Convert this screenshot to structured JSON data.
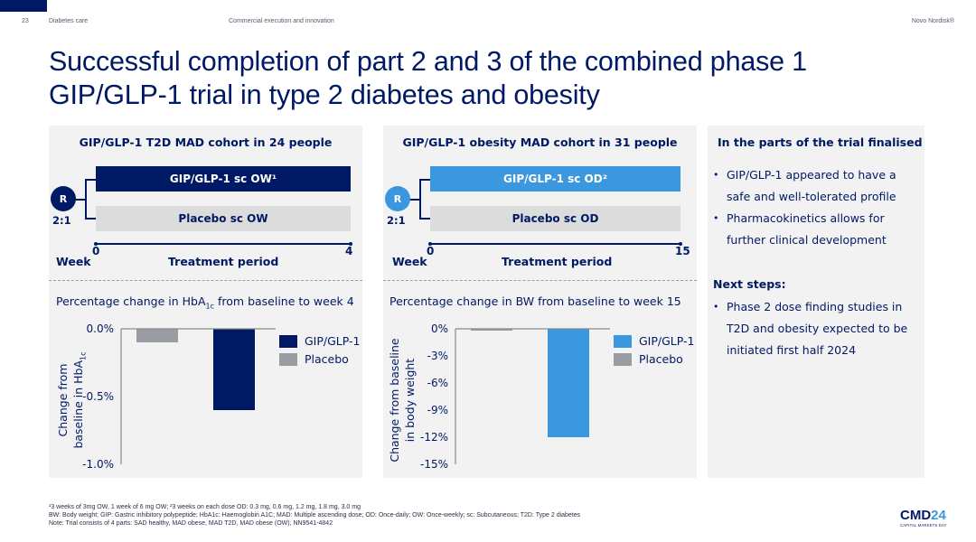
{
  "header": {
    "page_number": "23",
    "section": "Diabetes care",
    "topic": "Commercial execution and innovation",
    "brand": "Novo Nordisk®"
  },
  "title_line1": "Successful completion of part 2 and 3 of the combined phase 1",
  "title_line2": "GIP/GLP-1 trial in type 2 diabetes and obesity",
  "colors": {
    "navy": "#001965",
    "light_blue": "#3b97de",
    "placebo_gray": "#9a9ca3",
    "arm_gray": "#dcdcdc",
    "panel_bg": "#f2f2f2"
  },
  "trials": [
    {
      "title": "GIP/GLP-1 T2D MAD cohort in 24 people",
      "active_arm": "GIP/GLP-1 sc OW¹",
      "placebo_arm": "Placebo sc OW",
      "randomisation": "R",
      "ratio": "2:1",
      "week_label": "Week",
      "start_week": "0",
      "end_week": "4",
      "period_label": "Treatment period"
    },
    {
      "title": "GIP/GLP-1 obesity MAD cohort in 31 people",
      "active_arm": "GIP/GLP-1 sc OD²",
      "placebo_arm": "Placebo sc OD",
      "randomisation": "R",
      "ratio": "2:1",
      "week_label": "Week",
      "start_week": "0",
      "end_week": "15",
      "period_label": "Treatment period"
    }
  ],
  "chart_data": [
    {
      "type": "bar",
      "title_pre": "Percentage change in HbA",
      "title_sub": "1c",
      "title_post": " from baseline to week 4",
      "ylabel_line1": "Change from",
      "ylabel_line2_pre": "baseline in HbA",
      "ylabel_line2_sub": "1c",
      "categories": [
        "Placebo",
        "GIP/GLP-1"
      ],
      "values": [
        -0.1,
        -0.6
      ],
      "ylim": [
        -1.0,
        0.0
      ],
      "yticks": [
        0.0,
        -0.5,
        -1.0
      ],
      "ytick_labels": [
        "0.0%",
        "-0.5%",
        "-1.0%"
      ],
      "legend": [
        {
          "name": "GIP/GLP-1",
          "color": "#001965"
        },
        {
          "name": "Placebo",
          "color": "#9a9ca3"
        }
      ],
      "legend_position": "top-right",
      "grid": false
    },
    {
      "type": "bar",
      "title": "Percentage change in BW from baseline to week 15",
      "ylabel_line1": "Change from baseline",
      "ylabel_line2": "in body weight",
      "categories": [
        "Placebo",
        "GIP/GLP-1"
      ],
      "values": [
        -0.2,
        -12.0
      ],
      "ylim": [
        -15,
        0
      ],
      "yticks": [
        0,
        -3,
        -6,
        -9,
        -12,
        -15
      ],
      "ytick_labels": [
        "0%",
        "-3%",
        "-6%",
        "-9%",
        "-12%",
        "-15%"
      ],
      "legend": [
        {
          "name": "GIP/GLP-1",
          "color": "#3b97de"
        },
        {
          "name": "Placebo",
          "color": "#9a9ca3"
        }
      ],
      "legend_position": "top-right",
      "grid": false
    }
  ],
  "side": {
    "heading1": "In the parts of the trial finalised",
    "bullets1": [
      "GIP/GLP-1 appeared to have a safe and well-tolerated profile",
      "Pharmacokinetics allows for further clinical development"
    ],
    "heading2": "Next steps:",
    "bullets2": [
      "Phase 2 dose finding studies in T2D and obesity expected to be initiated first half 2024"
    ]
  },
  "footnotes": {
    "line1": "¹3 weeks of 3mg OW, 1 week of 6 mg OW; ²3 weeks on each dose OD: 0.3 mg, 0.6 mg, 1.2 mg, 1.8 mg, 3.0 mg",
    "line2": "BW: Body weight; GIP: Gastric inhibitory polypeptide; HbA1c: Haemoglobin A1C; MAD: Multiple ascending dose; OD: Once-daily; OW: Once-weekly; sc: Subcutaneous; T2D: Type 2 diabetes",
    "line3": "Note: Trial consists of 4 parts: SAD healthy, MAD obese, MAD T2D, MAD obese (OW), NN9541-4842"
  },
  "logo": {
    "main": "CMD",
    "accent": "24",
    "sub": "CAPITAL MARKETS DAY"
  }
}
